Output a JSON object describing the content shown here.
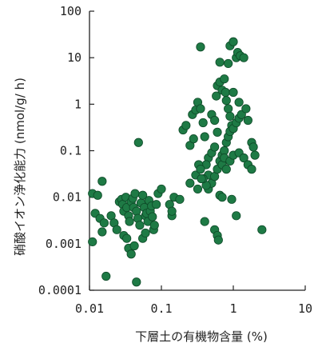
{
  "chart_data": {
    "type": "scatter",
    "xlabel": "下層土の有機物含量 (%)",
    "ylabel": "硝酸イオン浄化能力 (nmol/g/ h)",
    "x_scale": "log",
    "y_scale": "log",
    "xlim": [
      0.01,
      10
    ],
    "ylim": [
      0.0001,
      100
    ],
    "x_ticks": [
      "0.01",
      "0.1",
      "1",
      "10"
    ],
    "y_ticks": [
      "0.0001",
      "0.001",
      "0.01",
      "0.1",
      "1",
      "10",
      "100"
    ],
    "grid": false,
    "marker_color": "#1e7a45",
    "marker_edge": "#0e4a28",
    "points": [
      [
        0.011,
        0.012
      ],
      [
        0.013,
        0.011
      ],
      [
        0.015,
        0.022
      ],
      [
        0.012,
        0.0045
      ],
      [
        0.014,
        0.0035
      ],
      [
        0.016,
        0.0028
      ],
      [
        0.015,
        0.0018
      ],
      [
        0.011,
        0.0011
      ],
      [
        0.017,
        0.0002
      ],
      [
        0.02,
        0.004
      ],
      [
        0.022,
        0.0028
      ],
      [
        0.024,
        0.002
      ],
      [
        0.026,
        0.008
      ],
      [
        0.028,
        0.009
      ],
      [
        0.029,
        0.007
      ],
      [
        0.03,
        0.005
      ],
      [
        0.032,
        0.01
      ],
      [
        0.033,
        0.006
      ],
      [
        0.035,
        0.004
      ],
      [
        0.036,
        0.003
      ],
      [
        0.038,
        0.008
      ],
      [
        0.04,
        0.0095
      ],
      [
        0.041,
        0.006
      ],
      [
        0.043,
        0.012
      ],
      [
        0.045,
        0.005
      ],
      [
        0.047,
        0.0035
      ],
      [
        0.05,
        0.0025
      ],
      [
        0.052,
        0.0075
      ],
      [
        0.055,
        0.011
      ],
      [
        0.058,
        0.006
      ],
      [
        0.06,
        0.004
      ],
      [
        0.062,
        0.0045
      ],
      [
        0.065,
        0.003
      ],
      [
        0.067,
        0.0085
      ],
      [
        0.07,
        0.005
      ],
      [
        0.073,
        0.0065
      ],
      [
        0.075,
        0.0038
      ],
      [
        0.078,
        0.002
      ],
      [
        0.08,
        0.0025
      ],
      [
        0.085,
        0.007
      ],
      [
        0.09,
        0.012
      ],
      [
        0.1,
        0.015
      ],
      [
        0.03,
        0.0015
      ],
      [
        0.033,
        0.0013
      ],
      [
        0.035,
        0.0008
      ],
      [
        0.038,
        0.0006
      ],
      [
        0.055,
        0.0013
      ],
      [
        0.06,
        0.0017
      ],
      [
        0.045,
        0.00015
      ],
      [
        0.042,
        0.0009
      ],
      [
        0.048,
        0.15
      ],
      [
        0.13,
        0.007
      ],
      [
        0.14,
        0.004
      ],
      [
        0.14,
        0.005
      ],
      [
        0.15,
        0.01
      ],
      [
        0.18,
        0.009
      ],
      [
        0.2,
        0.28
      ],
      [
        0.22,
        0.35
      ],
      [
        0.25,
        0.13
      ],
      [
        0.28,
        0.18
      ],
      [
        0.27,
        0.6
      ],
      [
        0.3,
        0.75
      ],
      [
        0.32,
        1.1
      ],
      [
        0.35,
        0.8
      ],
      [
        0.35,
        17
      ],
      [
        0.38,
        0.4
      ],
      [
        0.4,
        0.2
      ],
      [
        0.45,
        0.07
      ],
      [
        0.45,
        0.03
      ],
      [
        0.42,
        0.05
      ],
      [
        0.5,
        0.09
      ],
      [
        0.55,
        0.12
      ],
      [
        0.6,
        0.25
      ],
      [
        0.5,
        0.6
      ],
      [
        0.55,
        0.45
      ],
      [
        0.58,
        1.5
      ],
      [
        0.6,
        2.5
      ],
      [
        0.65,
        3
      ],
      [
        0.7,
        2
      ],
      [
        0.75,
        3.5
      ],
      [
        0.78,
        1.8
      ],
      [
        0.8,
        1.2
      ],
      [
        0.85,
        0.8
      ],
      [
        0.9,
        0.55
      ],
      [
        0.95,
        0.35
      ],
      [
        0.45,
        0.015
      ],
      [
        0.5,
        0.02
      ],
      [
        0.42,
        0.018
      ],
      [
        0.55,
        0.028
      ],
      [
        0.6,
        0.04
      ],
      [
        0.65,
        0.06
      ],
      [
        0.7,
        0.08
      ],
      [
        0.75,
        0.1
      ],
      [
        0.8,
        0.15
      ],
      [
        0.85,
        0.2
      ],
      [
        0.9,
        0.26
      ],
      [
        1.0,
        0.3
      ],
      [
        1.1,
        0.4
      ],
      [
        1.2,
        0.5
      ],
      [
        1.3,
        0.6
      ],
      [
        0.7,
        0.05
      ],
      [
        0.75,
        0.07
      ],
      [
        0.8,
        0.04
      ],
      [
        0.9,
        0.06
      ],
      [
        1.0,
        0.08
      ],
      [
        1.2,
        0.09
      ],
      [
        1.4,
        0.07
      ],
      [
        1.6,
        0.05
      ],
      [
        1.8,
        0.04
      ],
      [
        2.0,
        0.08
      ],
      [
        0.65,
        0.011
      ],
      [
        0.7,
        0.01
      ],
      [
        0.95,
        0.009
      ],
      [
        1.1,
        0.004
      ],
      [
        0.4,
        0.003
      ],
      [
        0.55,
        0.002
      ],
      [
        0.6,
        0.0015
      ],
      [
        0.62,
        0.0012
      ],
      [
        0.38,
        0.025
      ],
      [
        2.5,
        0.002
      ],
      [
        0.65,
        8
      ],
      [
        0.85,
        7.5
      ],
      [
        0.9,
        18
      ],
      [
        1.0,
        22
      ],
      [
        1.1,
        10
      ],
      [
        1.15,
        13
      ],
      [
        1.25,
        11
      ],
      [
        1.4,
        10
      ],
      [
        1.0,
        1.8
      ],
      [
        1.2,
        1.1
      ],
      [
        1.5,
        0.8
      ],
      [
        1.6,
        0.45
      ],
      [
        1.8,
        0.15
      ],
      [
        1.9,
        0.12
      ],
      [
        0.25,
        0.02
      ],
      [
        0.3,
        0.03
      ],
      [
        0.33,
        0.05
      ],
      [
        0.35,
        0.04
      ],
      [
        0.36,
        0.025
      ],
      [
        0.32,
        0.015
      ]
    ]
  }
}
